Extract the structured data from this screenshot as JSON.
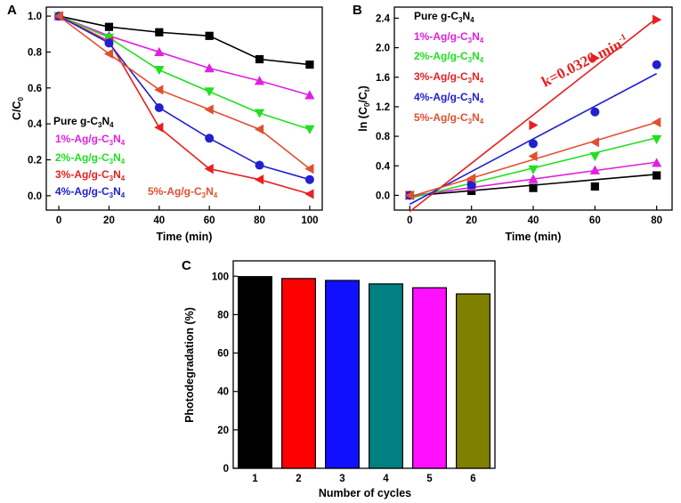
{
  "chart_data": [
    {
      "panel": "A",
      "type": "line",
      "xlabel": "Time (min)",
      "ylabel": "C/C0",
      "xlim": [
        -5,
        105
      ],
      "ylim": [
        -0.08,
        1.05
      ],
      "xticks": [
        "0",
        "20",
        "40",
        "60",
        "80",
        "100"
      ],
      "yticks": [
        "0.0",
        "0.2",
        "0.4",
        "0.6",
        "0.8",
        "1.0"
      ],
      "x": [
        0,
        20,
        40,
        60,
        80,
        100
      ],
      "series": [
        {
          "name": "Pure g-C3N4",
          "label_main": "Pure g-C",
          "label_sub1": "3",
          "label_mid": "N",
          "label_sub2": "4",
          "color": "#000000",
          "marker": "square",
          "values": [
            1.0,
            0.94,
            0.91,
            0.89,
            0.76,
            0.73
          ]
        },
        {
          "name": "1%-Ag/g-C3N4",
          "label_main": "1%-Ag/g-C",
          "label_sub1": "3",
          "label_mid": "N",
          "label_sub2": "4",
          "color": "#e020e0",
          "marker": "triangle-up",
          "values": [
            1.0,
            0.89,
            0.8,
            0.71,
            0.64,
            0.56
          ]
        },
        {
          "name": "2%-Ag/g-C3N4",
          "label_main": "2%-Ag/g-C",
          "label_sub1": "3",
          "label_mid": "N",
          "label_sub2": "4",
          "color": "#20e020",
          "marker": "triangle-down",
          "values": [
            1.0,
            0.88,
            0.7,
            0.58,
            0.46,
            0.37
          ]
        },
        {
          "name": "3%-Ag/g-C3N4",
          "label_main": "3%-Ag/g-C",
          "label_sub1": "3",
          "label_mid": "N",
          "label_sub2": "4",
          "color": "#e82020",
          "marker": "triangle-left",
          "values": [
            1.0,
            0.86,
            0.38,
            0.15,
            0.09,
            0.01
          ]
        },
        {
          "name": "4%-Ag/g-C3N4",
          "label_main": "4%-Ag/g-C",
          "label_sub1": "3",
          "label_mid": "N",
          "label_sub2": "4",
          "color": "#2020d0",
          "marker": "circle",
          "values": [
            1.0,
            0.85,
            0.49,
            0.32,
            0.17,
            0.09
          ]
        },
        {
          "name": "5%-Ag/g-C3N4",
          "label_main": "5%-Ag/g-C",
          "label_sub1": "3",
          "label_mid": "N",
          "label_sub2": "4",
          "color": "#e05030",
          "marker": "triangle-left",
          "values": [
            1.0,
            0.79,
            0.59,
            0.48,
            0.37,
            0.15
          ]
        }
      ]
    },
    {
      "panel": "B",
      "type": "scatter",
      "xlabel": "Time (min)",
      "ylabel": "ln (C0/Ct)",
      "xlim": [
        -5,
        85
      ],
      "ylim": [
        -0.2,
        2.55
      ],
      "xticks": [
        "0",
        "20",
        "40",
        "60",
        "80"
      ],
      "yticks": [
        "0.0",
        "0.4",
        "0.8",
        "1.2",
        "1.6",
        "2.0",
        "2.4"
      ],
      "x": [
        0,
        20,
        40,
        60,
        80
      ],
      "annotation": "k=0.0326 min",
      "annotation_sup": "-1",
      "series": [
        {
          "name": "Pure g-C3N4",
          "label_main": "Pure g-C",
          "label_sub1": "3",
          "label_mid": "N",
          "label_sub2": "4",
          "color": "#000000",
          "marker": "square",
          "values": [
            0.0,
            0.06,
            0.1,
            0.12,
            0.27
          ],
          "fit": [
            -0.01,
            0.285
          ]
        },
        {
          "name": "1%-Ag/g-C3N4",
          "label_main": "1%-Ag/g-C",
          "label_sub1": "3",
          "label_mid": "N",
          "label_sub2": "4",
          "color": "#e020e0",
          "marker": "triangle-up",
          "values": [
            0.0,
            0.12,
            0.22,
            0.34,
            0.44
          ],
          "fit": [
            -0.01,
            0.45
          ]
        },
        {
          "name": "2%-Ag/g-C3N4",
          "label_main": "2%-Ag/g-C",
          "label_sub1": "3",
          "label_mid": "N",
          "label_sub2": "4",
          "color": "#20e020",
          "marker": "triangle-down",
          "values": [
            0.0,
            0.13,
            0.35,
            0.53,
            0.76
          ],
          "fit": [
            -0.04,
            0.78
          ]
        },
        {
          "name": "3%-Ag/g-C3N4",
          "label_main": "3%-Ag/g-C",
          "label_sub1": "3",
          "label_mid": "N",
          "label_sub2": "4",
          "color": "#e82020",
          "marker": "triangle-right",
          "values": [
            0.0,
            0.15,
            0.95,
            1.86,
            2.38
          ],
          "fit": [
            -0.22,
            2.4
          ]
        },
        {
          "name": "4%-Ag/g-C3N4",
          "label_main": "4%-Ag/g-C",
          "label_sub1": "3",
          "label_mid": "N",
          "label_sub2": "4",
          "color": "#2020d0",
          "marker": "circle",
          "values": [
            0.0,
            0.14,
            0.7,
            1.13,
            1.77
          ],
          "fit": [
            -0.12,
            1.65
          ]
        },
        {
          "name": "5%-Ag/g-C3N4",
          "label_main": "5%-Ag/g-C",
          "label_sub1": "3",
          "label_mid": "N",
          "label_sub2": "4",
          "color": "#e05030",
          "marker": "triangle-left",
          "values": [
            0.0,
            0.23,
            0.53,
            0.72,
            0.99
          ],
          "fit": [
            -0.02,
            0.99
          ]
        }
      ]
    },
    {
      "panel": "C",
      "type": "bar",
      "xlabel": "Number of cycles",
      "ylabel": "Photodegradation (%)",
      "ylim": [
        0,
        108
      ],
      "categories": [
        "1",
        "2",
        "3",
        "4",
        "5",
        "6"
      ],
      "yticks": [
        "0",
        "20",
        "40",
        "60",
        "80",
        "100"
      ],
      "values": [
        99.8,
        98.8,
        97.8,
        96.0,
        94.0,
        90.8
      ],
      "colors": [
        "#000000",
        "#ff0000",
        "#1010ff",
        "#008080",
        "#ff10ff",
        "#808000"
      ]
    }
  ]
}
